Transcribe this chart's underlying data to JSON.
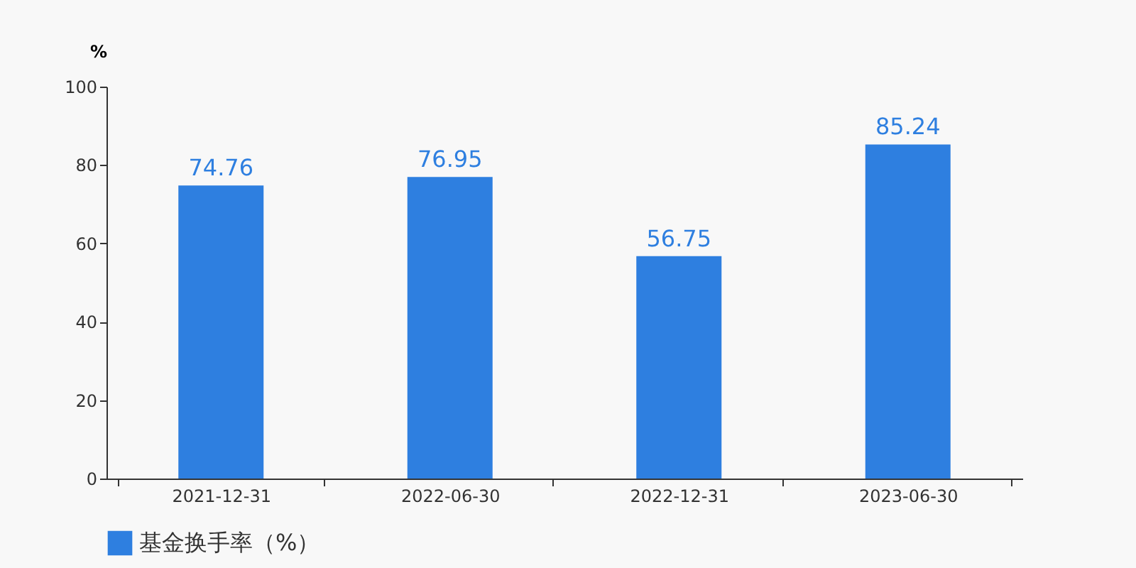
{
  "chart_data": {
    "type": "bar",
    "ylabel": "%",
    "categories": [
      "2021-12-31",
      "2022-06-30",
      "2022-12-31",
      "2023-06-30"
    ],
    "series": [
      {
        "name": "基金换手率（%）",
        "color": "#2e7fe0",
        "values": [
          74.76,
          76.95,
          56.75,
          85.24
        ]
      }
    ],
    "ylim": [
      0,
      100
    ],
    "yticks": [
      0,
      20,
      40,
      60,
      80,
      100
    ],
    "grid": false,
    "legend": "bottom",
    "data_labels": true
  }
}
